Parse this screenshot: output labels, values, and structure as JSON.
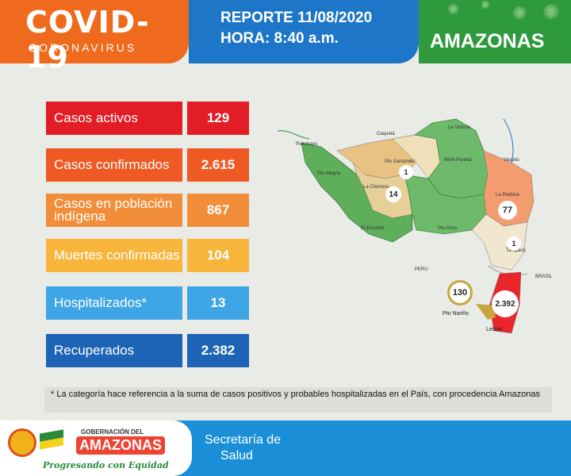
{
  "header": {
    "title": "COVID-19",
    "subtitle": "CORONAVIRUS",
    "report": "REPORTE 11/08/2020",
    "hora": "HORA: 8:40 a.m.",
    "region": "AMAZONAS"
  },
  "stats": [
    {
      "label": "Casos activos",
      "value": "129",
      "color": "#e21d26"
    },
    {
      "label": "Casos confirmados",
      "value": "2.615",
      "color": "#ef5a24"
    },
    {
      "label": "Casos en población indígena",
      "value": "867",
      "color": "#f28d3a"
    },
    {
      "label": "Muertes confirmadas",
      "value": "104",
      "color": "#f8b53c"
    },
    {
      "label": "Hospitalizados*",
      "value": "13",
      "color": "#3ea6e6"
    },
    {
      "label": "Recuperados",
      "value": "2.382",
      "color": "#1d63b6"
    }
  ],
  "map": {
    "places": {
      "caquet": "Caquetá",
      "putumayo": "Putumayo",
      "la_victoria": "La Victoria",
      "pto_santander": "Pto Santander",
      "mirit": "Mirití-Paraná",
      "vaupes": "Vaupés",
      "pto_alegria": "Pto Alegría",
      "la_chorrera": "La Chorrera",
      "la_pedrera": "La Pedrera",
      "el_encanto": "El Encanto",
      "pto_arica": "Pto Arica",
      "tarapaca": "Tarapacá",
      "peru": "PERU",
      "brasil": "BRASIL",
      "pto_narino": "Pto Nariño",
      "leticia": "Leticia"
    },
    "counts": {
      "pto_santander": "1",
      "la_chorrera": "14",
      "la_pedrera": "77",
      "tarapaca": "1",
      "pto_narino": "130",
      "leticia": "2.392"
    }
  },
  "footnote": "* La categoría hace referencia a la suma de casos positivos y probables hospitalizadas en el País, con procedencia Amazonas",
  "footer": {
    "gob": "GOBERNACIÓN DEL",
    "amazonas": "AMAZONAS",
    "slogan": "Progresando con Equidad",
    "sec1": "Secretaría de",
    "sec2": "Salud"
  }
}
